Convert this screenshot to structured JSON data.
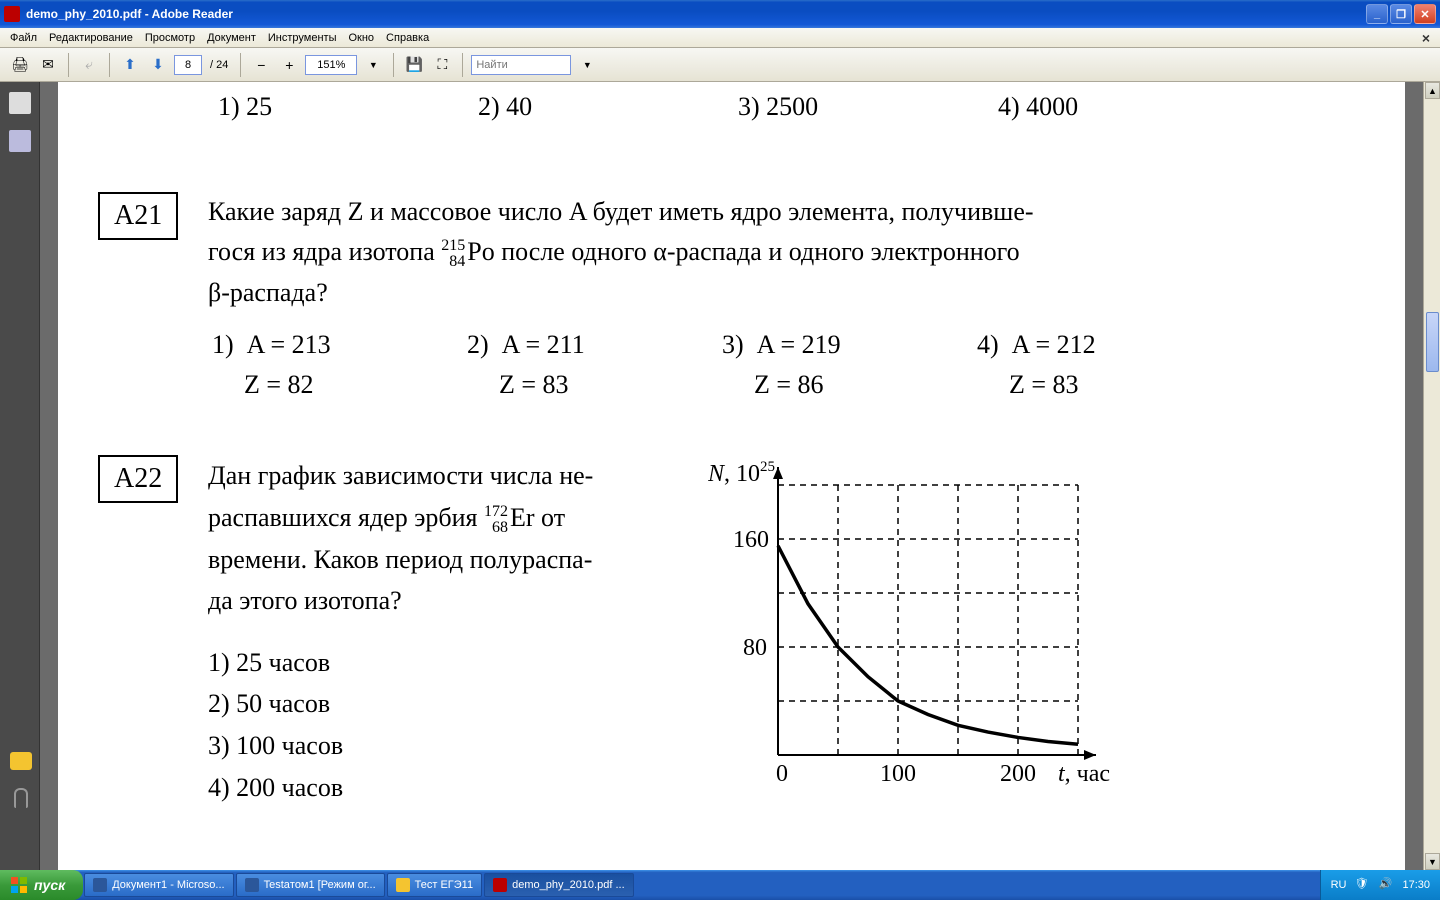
{
  "window": {
    "title": "demo_phy_2010.pdf - Adobe Reader"
  },
  "menu": {
    "items": [
      "Файл",
      "Редактирование",
      "Просмотр",
      "Документ",
      "Инструменты",
      "Окно",
      "Справка"
    ]
  },
  "toolbar": {
    "page_current": "8",
    "page_total": "/ 24",
    "zoom": "151%",
    "search_placeholder": "Найти"
  },
  "doc": {
    "top_answers": {
      "a1": "1)  25",
      "a2": "2)  40",
      "a3": "3)  2500",
      "a4": "4)  4000"
    },
    "q21": {
      "label": "A21",
      "text_1": "Какие заряд Z и массовое число A будет иметь ядро элемента, получивше-",
      "text_2a": "гося из ядра изотопа ",
      "iso_top": "215",
      "iso_bot": "84",
      "iso_el": "Po",
      "text_2b": " после одного α-распада и одного электронного",
      "text_3": "β-распада?",
      "answers": [
        {
          "n": "1)",
          "A": "A = 213",
          "Z": "Z = 82"
        },
        {
          "n": "2)",
          "A": "A = 211",
          "Z": "Z = 83"
        },
        {
          "n": "3)",
          "A": "A = 219",
          "Z": "Z = 86"
        },
        {
          "n": "4)",
          "A": "A = 212",
          "Z": "Z = 83"
        }
      ]
    },
    "q22": {
      "label": "A22",
      "text_1": "Дан график зависимости числа не-",
      "text_2a": "распавшихся ядер эрбия ",
      "iso_top": "172",
      "iso_bot": "68",
      "iso_el": "Er",
      "text_2b": " от",
      "text_3": "времени. Каков период полураспа-",
      "text_4": "да этого изотопа?",
      "answers": [
        "1)  25 часов",
        "2)  50 часов",
        "3)  100 часов",
        "4)  200 часов"
      ],
      "chart": {
        "ylabel_a": "N, 10",
        "ylabel_exp": "25",
        "xlabel": "t, час",
        "ytick_160": "160",
        "ytick_80": "80",
        "xtick_0": "0",
        "xtick_100": "100",
        "xtick_200": "200",
        "x_range": [
          0,
          250
        ],
        "y_range": [
          0,
          200
        ],
        "y_gridlines": [
          40,
          80,
          120,
          160,
          200
        ],
        "x_gridlines": [
          50,
          100,
          150,
          200,
          250
        ],
        "curve_points": [
          [
            0,
            155
          ],
          [
            25,
            112
          ],
          [
            50,
            80
          ],
          [
            75,
            58
          ],
          [
            100,
            40
          ],
          [
            125,
            30
          ],
          [
            150,
            22
          ],
          [
            175,
            17
          ],
          [
            200,
            13
          ],
          [
            225,
            10
          ],
          [
            250,
            8
          ]
        ],
        "curve_width": 3.5,
        "axis_width": 2,
        "grid_dash": "6,5",
        "colors": {
          "axis": "#000",
          "grid": "#000",
          "curve": "#000",
          "bg": "#fff"
        }
      }
    }
  },
  "taskbar": {
    "start": "пуск",
    "items": [
      {
        "label": "Документ1 - Microso...",
        "active": false
      },
      {
        "label": "Testaтом1 [Режим ог...",
        "active": false
      },
      {
        "label": "Тест ЕГЭ11",
        "active": false
      },
      {
        "label": "demo_phy_2010.pdf ...",
        "active": true
      }
    ],
    "lang": "RU",
    "time": "17:30"
  }
}
